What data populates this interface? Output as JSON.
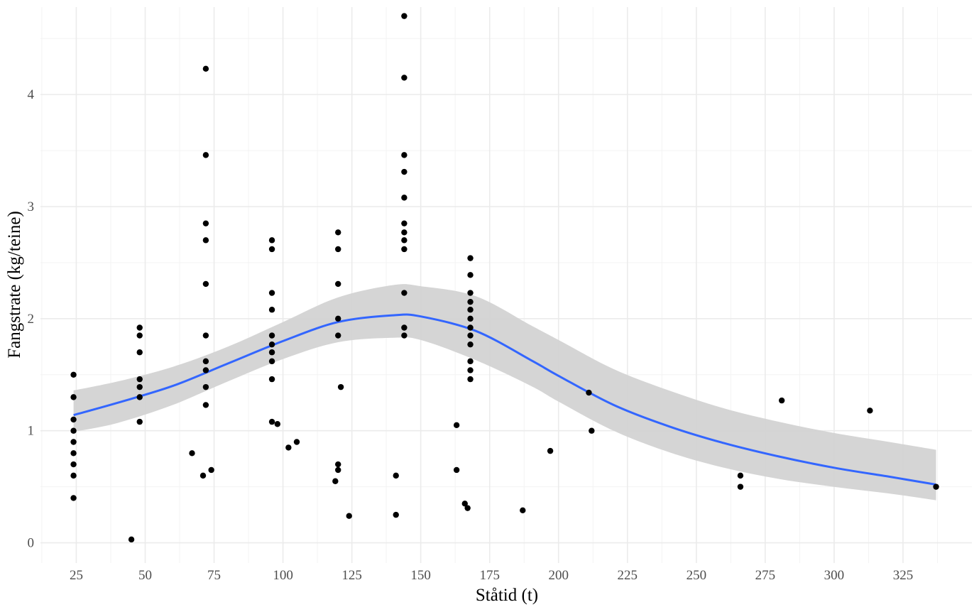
{
  "chart_data": {
    "type": "scatter",
    "title": "",
    "xlabel": "Ståtid (t)",
    "ylabel": "Fangstrate (kg/teine)",
    "xlim": [
      12,
      350
    ],
    "ylim": [
      -0.18,
      4.78
    ],
    "x_ticks": [
      25,
      50,
      75,
      100,
      125,
      150,
      175,
      200,
      225,
      250,
      275,
      300,
      325
    ],
    "x_tick_labels": [
      "25",
      "50",
      "75",
      "100",
      "125",
      "150",
      "175",
      "200",
      "225",
      "250",
      "275",
      "300",
      "325"
    ],
    "y_ticks": [
      0,
      1,
      2,
      3,
      4
    ],
    "y_tick_labels": [
      "0",
      "1",
      "2",
      "3",
      "4"
    ],
    "grid": true,
    "legend": "none",
    "points": [
      [
        24,
        1.5
      ],
      [
        24,
        1.3
      ],
      [
        24,
        1.1
      ],
      [
        24,
        1.0
      ],
      [
        24,
        0.9
      ],
      [
        24,
        0.8
      ],
      [
        24,
        0.7
      ],
      [
        24,
        0.6
      ],
      [
        24,
        0.4
      ],
      [
        45,
        0.03
      ],
      [
        48,
        1.92
      ],
      [
        48,
        1.85
      ],
      [
        48,
        1.7
      ],
      [
        48,
        1.46
      ],
      [
        48,
        1.39
      ],
      [
        48,
        1.3
      ],
      [
        48,
        1.08
      ],
      [
        67,
        0.8
      ],
      [
        71,
        0.6
      ],
      [
        72,
        4.23
      ],
      [
        72,
        3.46
      ],
      [
        72,
        2.85
      ],
      [
        72,
        2.7
      ],
      [
        72,
        2.31
      ],
      [
        72,
        1.85
      ],
      [
        72,
        1.62
      ],
      [
        72,
        1.54
      ],
      [
        72,
        1.39
      ],
      [
        72,
        1.23
      ],
      [
        74,
        0.65
      ],
      [
        96,
        2.7
      ],
      [
        96,
        2.62
      ],
      [
        96,
        2.23
      ],
      [
        96,
        2.08
      ],
      [
        96,
        1.85
      ],
      [
        96,
        1.77
      ],
      [
        96,
        1.7
      ],
      [
        96,
        1.62
      ],
      [
        96,
        1.46
      ],
      [
        96,
        1.08
      ],
      [
        98,
        1.06
      ],
      [
        102,
        0.85
      ],
      [
        105,
        0.9
      ],
      [
        120,
        2.77
      ],
      [
        120,
        2.62
      ],
      [
        120,
        2.31
      ],
      [
        120,
        2.0
      ],
      [
        120,
        1.85
      ],
      [
        121,
        1.39
      ],
      [
        120,
        0.7
      ],
      [
        120,
        0.65
      ],
      [
        119,
        0.55
      ],
      [
        124,
        0.24
      ],
      [
        141,
        0.6
      ],
      [
        141,
        0.25
      ],
      [
        144,
        4.7
      ],
      [
        144,
        4.15
      ],
      [
        144,
        3.46
      ],
      [
        144,
        3.31
      ],
      [
        144,
        3.08
      ],
      [
        144,
        2.85
      ],
      [
        144,
        2.77
      ],
      [
        144,
        2.7
      ],
      [
        144,
        2.62
      ],
      [
        144,
        2.23
      ],
      [
        144,
        1.92
      ],
      [
        144,
        1.85
      ],
      [
        163,
        1.05
      ],
      [
        163,
        0.65
      ],
      [
        166,
        0.35
      ],
      [
        167,
        0.31
      ],
      [
        168,
        2.54
      ],
      [
        168,
        2.39
      ],
      [
        168,
        2.23
      ],
      [
        168,
        2.15
      ],
      [
        168,
        2.08
      ],
      [
        168,
        2.0
      ],
      [
        168,
        1.92
      ],
      [
        168,
        1.85
      ],
      [
        168,
        1.77
      ],
      [
        168,
        1.62
      ],
      [
        168,
        1.54
      ],
      [
        168,
        1.46
      ],
      [
        187,
        0.29
      ],
      [
        197,
        0.82
      ],
      [
        211,
        1.34
      ],
      [
        212,
        1.0
      ],
      [
        266,
        0.6
      ],
      [
        266,
        0.5
      ],
      [
        281,
        1.27
      ],
      [
        313,
        1.18
      ],
      [
        337,
        0.5
      ]
    ],
    "smooth_curve": [
      [
        24,
        1.14
      ],
      [
        40,
        1.25
      ],
      [
        60,
        1.4
      ],
      [
        80,
        1.6
      ],
      [
        100,
        1.8
      ],
      [
        120,
        1.97
      ],
      [
        140,
        2.03
      ],
      [
        150,
        2.02
      ],
      [
        170,
        1.89
      ],
      [
        190,
        1.63
      ],
      [
        200,
        1.49
      ],
      [
        220,
        1.23
      ],
      [
        240,
        1.04
      ],
      [
        260,
        0.89
      ],
      [
        280,
        0.77
      ],
      [
        300,
        0.67
      ],
      [
        320,
        0.59
      ],
      [
        337,
        0.52
      ]
    ],
    "ci_upper": [
      [
        24,
        1.36
      ],
      [
        40,
        1.44
      ],
      [
        60,
        1.57
      ],
      [
        80,
        1.75
      ],
      [
        100,
        1.97
      ],
      [
        120,
        2.19
      ],
      [
        140,
        2.3
      ],
      [
        150,
        2.29
      ],
      [
        170,
        2.2
      ],
      [
        190,
        1.94
      ],
      [
        200,
        1.81
      ],
      [
        220,
        1.55
      ],
      [
        240,
        1.36
      ],
      [
        260,
        1.2
      ],
      [
        280,
        1.08
      ],
      [
        300,
        0.98
      ],
      [
        320,
        0.9
      ],
      [
        337,
        0.83
      ]
    ],
    "ci_lower": [
      [
        24,
        0.99
      ],
      [
        40,
        1.07
      ],
      [
        60,
        1.23
      ],
      [
        80,
        1.44
      ],
      [
        100,
        1.64
      ],
      [
        120,
        1.79
      ],
      [
        140,
        1.83
      ],
      [
        150,
        1.81
      ],
      [
        170,
        1.63
      ],
      [
        190,
        1.4
      ],
      [
        200,
        1.26
      ],
      [
        220,
        1.0
      ],
      [
        240,
        0.81
      ],
      [
        260,
        0.67
      ],
      [
        280,
        0.57
      ],
      [
        300,
        0.5
      ],
      [
        320,
        0.44
      ],
      [
        337,
        0.38
      ]
    ],
    "colors": {
      "points": "#000000",
      "line": "#3366FF",
      "band": "#d3d3d3",
      "grid_major": "#ebebeb",
      "grid_minor": "#f3f3f3"
    }
  }
}
